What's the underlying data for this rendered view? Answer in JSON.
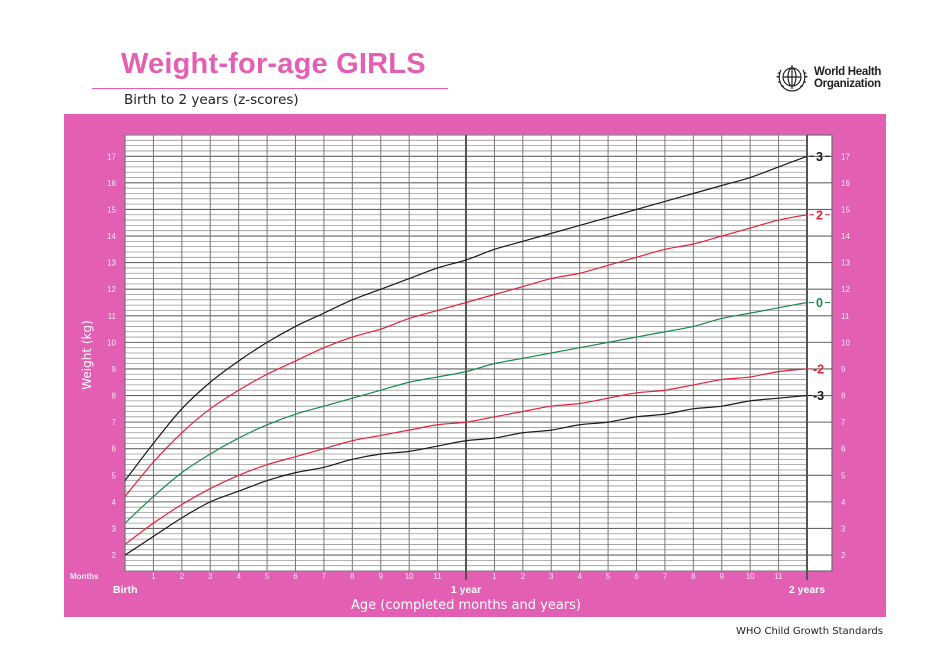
{
  "header": {
    "title": "Weight-for-age GIRLS",
    "subtitle": "Birth to 2 years (z-scores)",
    "org_line1": "World Health",
    "org_line2": "Organization",
    "logo_icon": "who-emblem-icon"
  },
  "footer": {
    "text": "WHO Child Growth Standards"
  },
  "colors": {
    "brand_pink": "#e35fb3",
    "sd3": "#1a1a1a",
    "sd2": "#e8213a",
    "sd0": "#1a8a4a",
    "grid": "#6e6e6e"
  },
  "chart_data": {
    "type": "line",
    "title": "Weight-for-age GIRLS",
    "subtitle": "Birth to 2 years (z-scores)",
    "xlabel": "Age (completed months and years)",
    "ylabel": "Weight (kg)",
    "x_tick_prefix_label": "Months",
    "x_major_labels": [
      "Birth",
      "1 year",
      "2 years"
    ],
    "x_month_ticks": [
      "1",
      "2",
      "3",
      "4",
      "5",
      "6",
      "7",
      "8",
      "9",
      "10",
      "11"
    ],
    "x": [
      0,
      1,
      2,
      3,
      4,
      5,
      6,
      7,
      8,
      9,
      10,
      11,
      12,
      13,
      14,
      15,
      16,
      17,
      18,
      19,
      20,
      21,
      22,
      23,
      24
    ],
    "xlim": [
      0,
      24
    ],
    "ylim": [
      1.4,
      17.8
    ],
    "y_ticks": [
      2,
      3,
      4,
      5,
      6,
      7,
      8,
      9,
      10,
      11,
      12,
      13,
      14,
      15,
      16,
      17
    ],
    "grid": true,
    "grid_minor_y_step": 0.2,
    "legend_position": "right (curve end labels)",
    "series": [
      {
        "name": "3",
        "color": "#1a1a1a",
        "values": [
          4.8,
          6.2,
          7.5,
          8.5,
          9.3,
          10.0,
          10.6,
          11.1,
          11.6,
          12.0,
          12.4,
          12.8,
          13.1,
          13.5,
          13.8,
          14.1,
          14.4,
          14.7,
          15.0,
          15.3,
          15.6,
          15.9,
          16.2,
          16.6,
          17.0
        ]
      },
      {
        "name": "2",
        "color": "#e8213a",
        "values": [
          4.2,
          5.5,
          6.6,
          7.5,
          8.2,
          8.8,
          9.3,
          9.8,
          10.2,
          10.5,
          10.9,
          11.2,
          11.5,
          11.8,
          12.1,
          12.4,
          12.6,
          12.9,
          13.2,
          13.5,
          13.7,
          14.0,
          14.3,
          14.6,
          14.8
        ]
      },
      {
        "name": "0",
        "color": "#1a8a4a",
        "values": [
          3.2,
          4.2,
          5.1,
          5.8,
          6.4,
          6.9,
          7.3,
          7.6,
          7.9,
          8.2,
          8.5,
          8.7,
          8.9,
          9.2,
          9.4,
          9.6,
          9.8,
          10.0,
          10.2,
          10.4,
          10.6,
          10.9,
          11.1,
          11.3,
          11.5
        ]
      },
      {
        "name": "-2",
        "color": "#e8213a",
        "values": [
          2.4,
          3.2,
          3.9,
          4.5,
          5.0,
          5.4,
          5.7,
          6.0,
          6.3,
          6.5,
          6.7,
          6.9,
          7.0,
          7.2,
          7.4,
          7.6,
          7.7,
          7.9,
          8.1,
          8.2,
          8.4,
          8.6,
          8.7,
          8.9,
          9.0
        ]
      },
      {
        "name": "-3",
        "color": "#1a1a1a",
        "values": [
          2.0,
          2.7,
          3.4,
          4.0,
          4.4,
          4.8,
          5.1,
          5.3,
          5.6,
          5.8,
          5.9,
          6.1,
          6.3,
          6.4,
          6.6,
          6.7,
          6.9,
          7.0,
          7.2,
          7.3,
          7.5,
          7.6,
          7.8,
          7.9,
          8.0
        ]
      }
    ]
  }
}
